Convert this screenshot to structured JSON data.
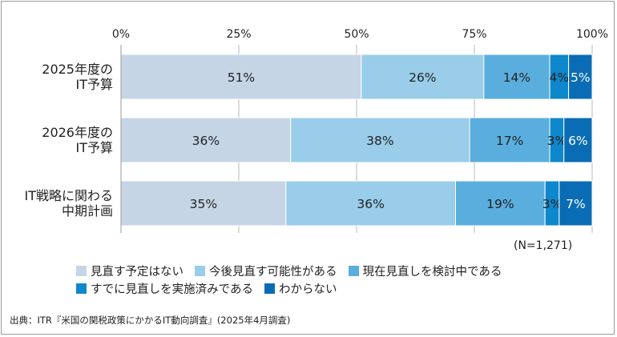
{
  "chart_data": {
    "type": "bar",
    "orientation": "horizontal",
    "stacked": true,
    "percent_stacked": true,
    "categories": [
      [
        "2025年度の",
        "IT予算"
      ],
      [
        "2026年度の",
        "IT予算"
      ],
      [
        "IT戦略に関わる",
        "中期計画"
      ]
    ],
    "x_ticks": [
      "0%",
      "25%",
      "50%",
      "75%",
      "100%"
    ],
    "xlim": [
      0,
      100
    ],
    "grid": true,
    "legend_position": "bottom",
    "series": [
      {
        "name": "見直す予定はない",
        "color": "#c5d5e6",
        "values": [
          51,
          36,
          35
        ],
        "labels": [
          "51%",
          "36%",
          "35%"
        ],
        "label_color": "#222222"
      },
      {
        "name": "今後見直す可能性がある",
        "color": "#99cde9",
        "values": [
          26,
          38,
          36
        ],
        "labels": [
          "26%",
          "38%",
          "36%"
        ],
        "label_color": "#222222"
      },
      {
        "name": "現在見直しを検討中である",
        "color": "#5aaedd",
        "values": [
          14,
          17,
          19
        ],
        "labels": [
          "14%",
          "17%",
          "19%"
        ],
        "label_color": "#222222"
      },
      {
        "name": "すでに見直しを実施済みである",
        "color": "#0e87cc",
        "values": [
          4,
          3,
          3
        ],
        "labels": [
          "4%",
          "3%",
          "3%"
        ],
        "label_color": "#222222"
      },
      {
        "name": "わからない",
        "color": "#0a6cb4",
        "values": [
          5,
          6,
          7
        ],
        "labels": [
          "5%",
          "6%",
          "7%"
        ],
        "label_color": "#ffffff"
      }
    ],
    "note": "(N=1,271)",
    "source": "出典：ITR『米国の関税政策にかかるIT動向調査』(2025年4月調査)"
  }
}
